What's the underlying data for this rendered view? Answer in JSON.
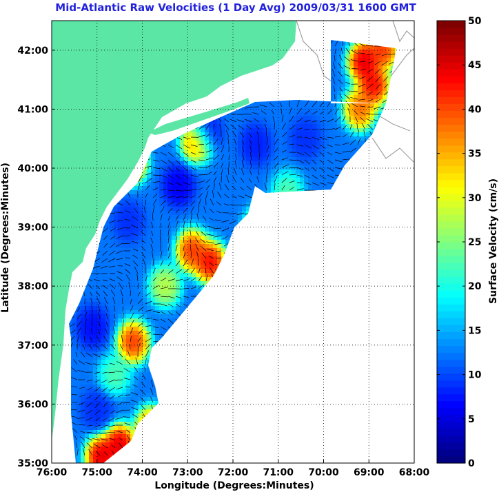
{
  "chart_data": {
    "type": "heatmap",
    "title": "Mid-Atlantic Raw Velocities (1 Day Avg) 2009/03/31 1600 GMT",
    "xlabel": "Longitude (Degrees:Minutes)",
    "ylabel": "Latitude (Degrees:Minutes)",
    "xlim": [
      76,
      68
    ],
    "ylim": [
      35,
      42.5
    ],
    "x_ticks": [
      76,
      75,
      74,
      73,
      72,
      71,
      70,
      69,
      68
    ],
    "x_tick_labels": [
      "76:00",
      "75:00",
      "74:00",
      "73:00",
      "72:00",
      "71:00",
      "70:00",
      "69:00",
      "68:00"
    ],
    "y_ticks": [
      35,
      36,
      37,
      38,
      39,
      40,
      41,
      42
    ],
    "y_tick_labels": [
      "35:00",
      "36:00",
      "37:00",
      "38:00",
      "39:00",
      "40:00",
      "41:00",
      "42:00"
    ],
    "grid": true,
    "colorbar": {
      "label": "Surface Velocity (cm/s)",
      "range": [
        0,
        50
      ],
      "ticks": [
        0,
        5,
        10,
        15,
        20,
        25,
        30,
        35,
        40,
        45,
        50
      ],
      "tick_labels": [
        "0",
        "5",
        "10",
        "15",
        "20",
        "25",
        "30",
        "35",
        "40",
        "45",
        "50"
      ],
      "colormap": "jet"
    },
    "land_color": "#5ce6a6",
    "hotspots": [
      {
        "lon": 72.5,
        "lat": 38.4,
        "speed": 48
      },
      {
        "lon": 72.9,
        "lat": 38.6,
        "speed": 45
      },
      {
        "lon": 71.9,
        "lat": 38.1,
        "speed": 40
      },
      {
        "lon": 74.2,
        "lat": 37.05,
        "speed": 45
      },
      {
        "lon": 74.5,
        "lat": 35.3,
        "speed": 50
      },
      {
        "lon": 74.9,
        "lat": 35.1,
        "speed": 50
      },
      {
        "lon": 73.8,
        "lat": 35.6,
        "speed": 42
      },
      {
        "lon": 72.8,
        "lat": 40.45,
        "speed": 40
      },
      {
        "lon": 74.25,
        "lat": 40.1,
        "speed": 42
      },
      {
        "lon": 68.9,
        "lat": 41.4,
        "speed": 48
      },
      {
        "lon": 69.1,
        "lat": 41.8,
        "speed": 50
      },
      {
        "lon": 68.7,
        "lat": 42.0,
        "speed": 45
      },
      {
        "lon": 69.2,
        "lat": 41.0,
        "speed": 42
      },
      {
        "lon": 71.4,
        "lat": 39.0,
        "speed": 30
      },
      {
        "lon": 70.8,
        "lat": 39.6,
        "speed": 24
      },
      {
        "lon": 73.5,
        "lat": 38.0,
        "speed": 30
      },
      {
        "lon": 74.6,
        "lat": 36.5,
        "speed": 24
      }
    ],
    "coldspots": [
      {
        "lon": 73.2,
        "lat": 39.7,
        "speed": 5
      },
      {
        "lon": 72.6,
        "lat": 40.6,
        "speed": 6
      },
      {
        "lon": 75.1,
        "lat": 37.3,
        "speed": 6
      },
      {
        "lon": 74.3,
        "lat": 39.1,
        "speed": 8
      },
      {
        "lon": 71.5,
        "lat": 40.4,
        "speed": 7
      },
      {
        "lon": 70.4,
        "lat": 40.5,
        "speed": 8
      },
      {
        "lon": 75.0,
        "lat": 35.9,
        "speed": 8
      }
    ],
    "background_speed": 12
  }
}
